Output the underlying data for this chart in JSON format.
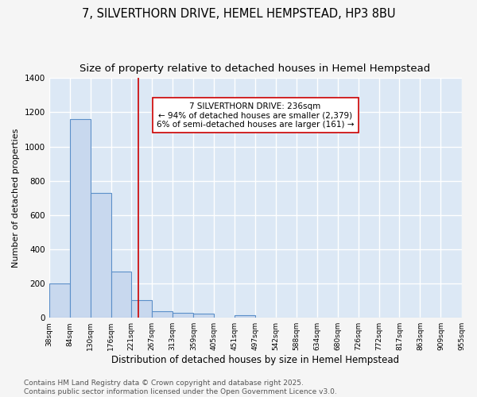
{
  "title1": "7, SILVERTHORN DRIVE, HEMEL HEMPSTEAD, HP3 8BU",
  "title2": "Size of property relative to detached houses in Hemel Hempstead",
  "xlabel": "Distribution of detached houses by size in Hemel Hempstead",
  "ylabel": "Number of detached properties",
  "bin_edges": [
    38,
    84,
    130,
    176,
    221,
    267,
    313,
    359,
    405,
    451,
    497,
    542,
    588,
    634,
    680,
    726,
    772,
    817,
    863,
    909,
    955
  ],
  "bar_heights": [
    200,
    1160,
    730,
    270,
    105,
    40,
    30,
    25,
    0,
    15,
    0,
    0,
    0,
    0,
    0,
    0,
    0,
    0,
    0,
    0
  ],
  "bar_color": "#c8d8ee",
  "bar_edge_color": "#5b8fc9",
  "vline_x": 236,
  "vline_color": "#cc0000",
  "annotation_text": "7 SILVERTHORN DRIVE: 236sqm\n← 94% of detached houses are smaller (2,379)\n6% of semi-detached houses are larger (161) →",
  "annotation_box_color": "#ffffff",
  "annotation_box_edge_color": "#cc0000",
  "ylim": [
    0,
    1400
  ],
  "yticks": [
    0,
    200,
    400,
    600,
    800,
    1000,
    1200,
    1400
  ],
  "plot_bg_color": "#dce8f5",
  "fig_bg_color": "#f5f5f5",
  "grid_color": "#ffffff",
  "footer_text": "Contains HM Land Registry data © Crown copyright and database right 2025.\nContains public sector information licensed under the Open Government Licence v3.0.",
  "title1_fontsize": 10.5,
  "title2_fontsize": 9.5,
  "annotation_fontsize": 7.5,
  "footer_fontsize": 6.5,
  "ylabel_fontsize": 8,
  "xlabel_fontsize": 8.5
}
